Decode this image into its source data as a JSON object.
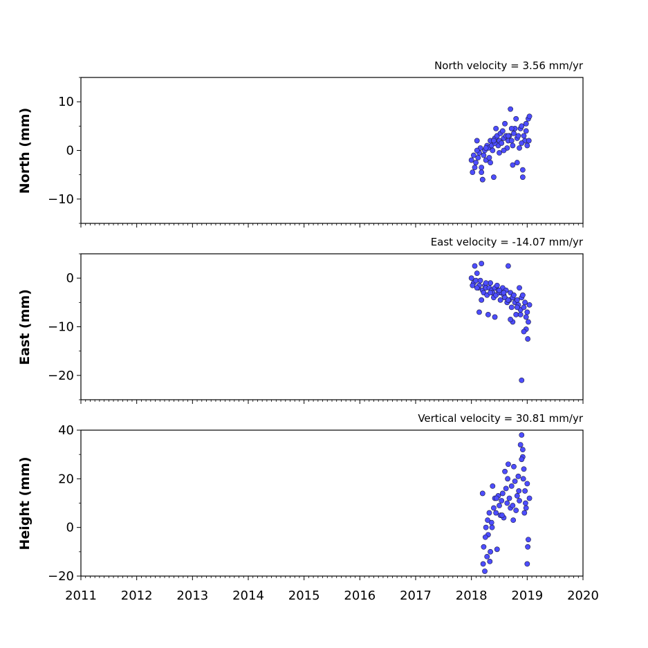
{
  "chart_data": [
    {
      "type": "scatter",
      "title": "North velocity = 3.56 mm/yr",
      "xlabel": "",
      "ylabel": "North (mm)",
      "xlim": [
        2011,
        2020
      ],
      "ylim": [
        -15,
        15
      ],
      "yticks": [
        -10,
        0,
        10
      ],
      "y_tick_labels": [
        "−10",
        "0",
        "10"
      ],
      "marker_color": "#4d4dff",
      "series": [
        {
          "x": [
            2018.0,
            2018.04,
            2018.06,
            2018.08,
            2018.1,
            2018.12,
            2018.14,
            2018.16,
            2018.18,
            2018.2,
            2018.22,
            2018.24,
            2018.26,
            2018.28,
            2018.3,
            2018.32,
            2018.34,
            2018.36,
            2018.38,
            2018.4,
            2018.42,
            2018.44,
            2018.46,
            2018.48,
            2018.5,
            2018.52,
            2018.54,
            2018.56,
            2018.58,
            2018.6,
            2018.62,
            2018.64,
            2018.66,
            2018.68,
            2018.7,
            2018.72,
            2018.74,
            2018.76,
            2018.78,
            2018.8,
            2018.82,
            2018.84,
            2018.86,
            2018.88,
            2018.9,
            2018.92,
            2018.94,
            2018.96,
            2018.98,
            2019.0,
            2019.02,
            2019.04,
            2018.02,
            2018.1,
            2018.18,
            2018.26,
            2018.34,
            2018.42,
            2018.5,
            2018.58,
            2018.66,
            2018.74,
            2018.82,
            2018.9,
            2018.98,
            2018.2,
            2018.4,
            2018.72,
            2018.92,
            2019.03
          ],
          "y": [
            -2.0,
            -1.0,
            -3.5,
            -2.5,
            2.0,
            -1.5,
            -0.5,
            0.5,
            -4.5,
            -6.0,
            -1.0,
            0.0,
            -2.0,
            1.0,
            0.5,
            -1.5,
            2.0,
            1.0,
            0.0,
            -5.5,
            2.5,
            4.5,
            3.0,
            1.0,
            2.0,
            3.5,
            1.5,
            4.0,
            2.5,
            5.5,
            3.0,
            0.5,
            2.0,
            3.0,
            8.5,
            2.0,
            1.0,
            3.5,
            4.5,
            6.5,
            2.5,
            3.0,
            0.5,
            4.5,
            5.0,
            -4.0,
            3.0,
            2.0,
            5.5,
            1.0,
            6.5,
            7.0,
            -4.5,
            0.0,
            -3.5,
            0.5,
            -2.5,
            1.5,
            -0.5,
            0.0,
            3.0,
            -3.0,
            -2.5,
            1.5,
            4.0,
            -6.0,
            2.0,
            4.5,
            -5.5,
            2.0
          ]
        }
      ]
    },
    {
      "type": "scatter",
      "title": "East velocity = -14.07 mm/yr",
      "xlabel": "",
      "ylabel": "East (mm)",
      "xlim": [
        2011,
        2020
      ],
      "ylim": [
        -25,
        5
      ],
      "yticks": [
        -20,
        -10,
        0
      ],
      "y_tick_labels": [
        "−20",
        "−10",
        "0"
      ],
      "marker_color": "#4d4dff",
      "series": [
        {
          "x": [
            2018.0,
            2018.04,
            2018.06,
            2018.08,
            2018.1,
            2018.12,
            2018.14,
            2018.16,
            2018.18,
            2018.2,
            2018.22,
            2018.24,
            2018.26,
            2018.28,
            2018.3,
            2018.32,
            2018.34,
            2018.36,
            2018.38,
            2018.4,
            2018.42,
            2018.44,
            2018.46,
            2018.48,
            2018.5,
            2018.52,
            2018.54,
            2018.56,
            2018.58,
            2018.6,
            2018.62,
            2018.64,
            2018.66,
            2018.68,
            2018.7,
            2018.72,
            2018.74,
            2018.76,
            2018.78,
            2018.8,
            2018.82,
            2018.84,
            2018.86,
            2018.88,
            2018.9,
            2018.92,
            2018.94,
            2018.96,
            2018.98,
            2019.0,
            2019.02,
            2019.04,
            2018.02,
            2018.1,
            2018.18,
            2018.26,
            2018.34,
            2018.42,
            2018.5,
            2018.58,
            2018.66,
            2018.74,
            2018.82,
            2018.9,
            2018.98,
            2018.88,
            2018.7,
            2018.94,
            2019.01,
            2018.14
          ],
          "y": [
            0.0,
            -1.0,
            2.5,
            -0.5,
            1.0,
            -2.0,
            -1.5,
            -0.5,
            3.0,
            -2.5,
            -3.0,
            -1.5,
            -2.0,
            -3.5,
            -7.5,
            -2.0,
            -1.0,
            -2.5,
            -3.0,
            -4.0,
            -2.0,
            -3.5,
            -1.5,
            -2.5,
            -3.0,
            -4.5,
            -3.0,
            -2.0,
            -3.5,
            -4.0,
            -2.5,
            -5.0,
            2.5,
            -4.5,
            -3.0,
            -6.0,
            -4.0,
            -3.5,
            -5.0,
            -7.5,
            -4.5,
            -5.5,
            -2.0,
            -6.5,
            -4.0,
            -3.5,
            -6.0,
            -5.0,
            -8.0,
            -7.0,
            -9.0,
            -5.5,
            -1.5,
            -2.0,
            -4.5,
            -1.0,
            -3.0,
            -8.0,
            -2.5,
            -3.0,
            -4.5,
            -9.0,
            -6.0,
            -21.0,
            -10.5,
            -7.5,
            -8.5,
            -11.0,
            -12.5,
            -7.0
          ]
        }
      ]
    },
    {
      "type": "scatter",
      "title": "Vertical velocity = 30.81 mm/yr",
      "xlabel": "",
      "ylabel": "Height (mm)",
      "xlim": [
        2011,
        2020
      ],
      "ylim": [
        -20,
        40
      ],
      "yticks": [
        -20,
        0,
        20,
        40
      ],
      "y_tick_labels": [
        "−20",
        "0",
        "20",
        "40"
      ],
      "xticks": [
        2011,
        2012,
        2013,
        2014,
        2015,
        2016,
        2017,
        2018,
        2019,
        2020
      ],
      "x_tick_labels": [
        "2011",
        "2012",
        "2013",
        "2014",
        "2015",
        "2016",
        "2017",
        "2018",
        "2019",
        "2020"
      ],
      "marker_color": "#4d4dff",
      "series": [
        {
          "x": [
            2018.2,
            2018.22,
            2018.24,
            2018.26,
            2018.28,
            2018.3,
            2018.32,
            2018.34,
            2018.36,
            2018.38,
            2018.4,
            2018.42,
            2018.44,
            2018.46,
            2018.48,
            2018.5,
            2018.52,
            2018.54,
            2018.56,
            2018.58,
            2018.6,
            2018.62,
            2018.64,
            2018.66,
            2018.68,
            2018.7,
            2018.72,
            2018.74,
            2018.76,
            2018.78,
            2018.8,
            2018.82,
            2018.84,
            2018.86,
            2018.88,
            2018.9,
            2018.92,
            2018.94,
            2018.96,
            2018.98,
            2019.0,
            2019.02,
            2019.04,
            2018.21,
            2018.25,
            2018.29,
            2018.33,
            2018.37,
            2018.45,
            2018.55,
            2018.65,
            2018.75,
            2018.85,
            2018.95,
            2019.01,
            2018.92,
            2018.9,
            2018.93,
            2018.97,
            2019.0
          ],
          "y": [
            14.0,
            -8.0,
            -18.0,
            0.0,
            -12.0,
            -3.0,
            6.0,
            -10.0,
            2.0,
            17.0,
            8.0,
            12.0,
            6.0,
            -9.0,
            13.0,
            9.0,
            5.0,
            11.0,
            14.0,
            4.0,
            23.0,
            16.0,
            10.0,
            26.0,
            12.0,
            8.0,
            17.0,
            9.0,
            25.0,
            19.0,
            7.0,
            13.0,
            21.0,
            11.0,
            34.0,
            38.0,
            29.0,
            24.0,
            15.0,
            8.0,
            18.0,
            -5.0,
            12.0,
            -15.0,
            -4.0,
            3.0,
            -14.0,
            0.0,
            12.0,
            5.0,
            20.0,
            3.0,
            15.0,
            6.0,
            -8.0,
            32.0,
            28.0,
            20.0,
            10.0,
            -15.0
          ]
        }
      ]
    }
  ]
}
